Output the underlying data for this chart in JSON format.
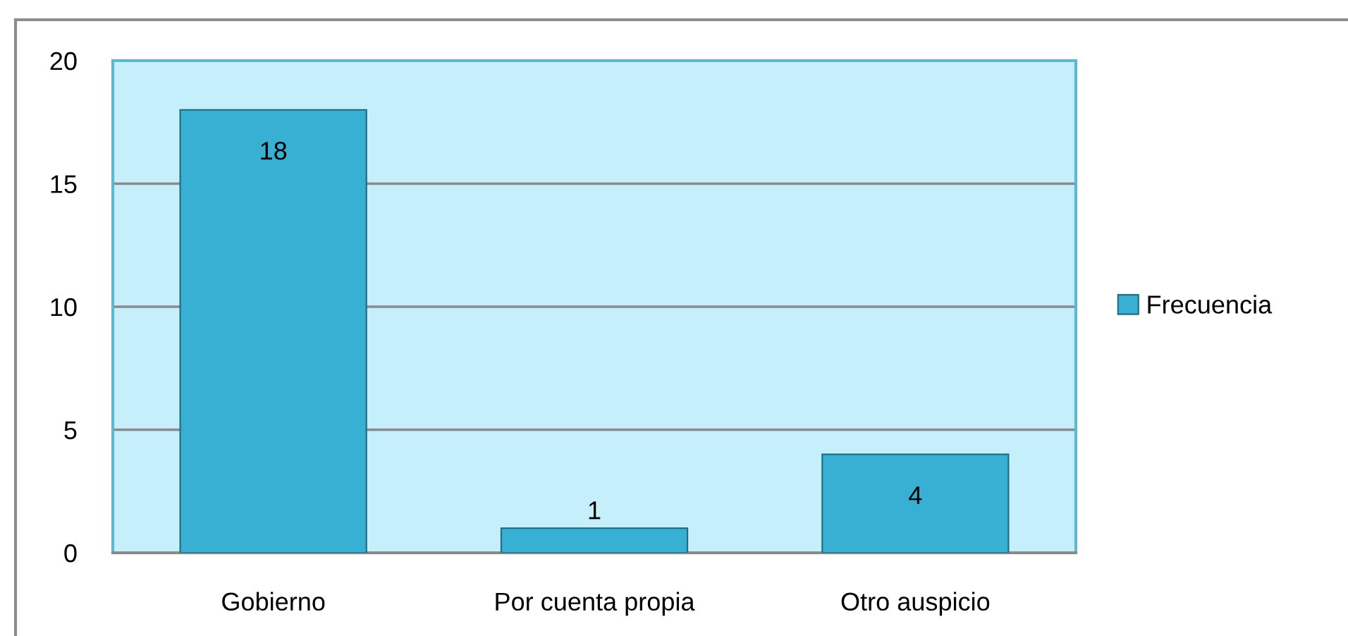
{
  "chart_data": {
    "type": "bar",
    "categories": [
      "Gobierno",
      "Por cuenta propia",
      "Otro auspicio"
    ],
    "series": [
      {
        "name": "Frecuencia",
        "color": "#38b0d4",
        "values": [
          18,
          1,
          4
        ]
      }
    ],
    "ylim": [
      0,
      20
    ],
    "yticks": [
      0,
      5,
      10,
      15,
      20
    ],
    "grid": "y",
    "legend": "right",
    "data_labels": true
  }
}
